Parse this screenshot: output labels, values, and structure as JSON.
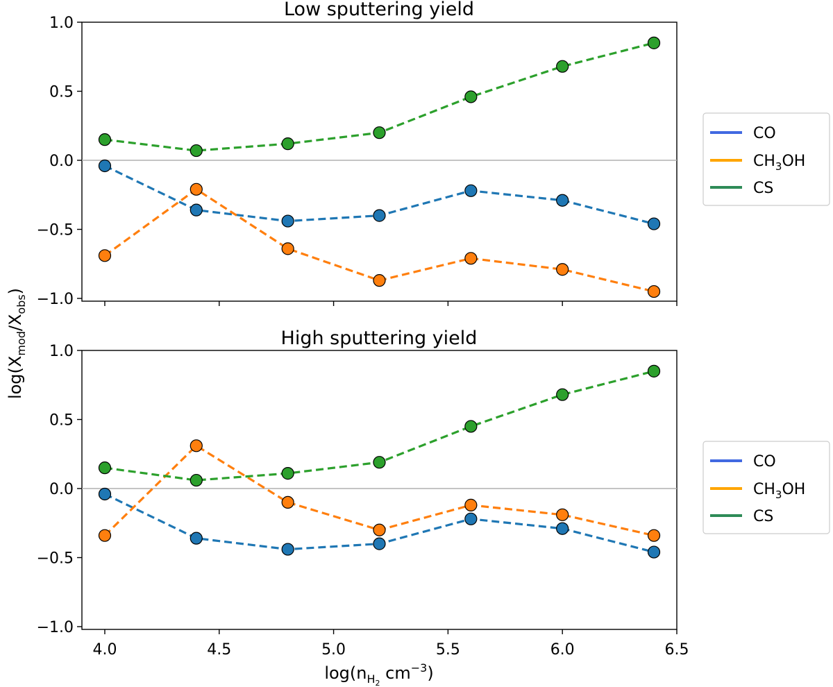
{
  "colors": {
    "CO": "#1f77b4",
    "CH3OH": "#ff7f0e",
    "CS": "#2ca02c",
    "legend_CO": "#4169e1",
    "legend_CH3OH": "#ffa500",
    "legend_CS": "#2e8b57",
    "zero_line": "#b0b0b0"
  },
  "axes": {
    "xlabel_main": "log(n",
    "xlabel_sub": "H",
    "xlabel_subsub": "2",
    "xlabel_unit": " cm",
    "xlabel_exp": "−3",
    "xlabel_close": ")",
    "ylabel_main": "log(X",
    "ylabel_sub1": "mod",
    "ylabel_mid": "/X",
    "ylabel_sub2": "obs",
    "ylabel_close": ")"
  },
  "legend": {
    "co_label": "CO",
    "ch3oh_pre": "CH",
    "ch3oh_sub": "3",
    "ch3oh_post": "OH",
    "cs_label": "CS"
  },
  "chart_data": [
    {
      "type": "line",
      "title": "Low sputtering yield",
      "x": [
        4.0,
        4.4,
        4.8,
        5.2,
        5.6,
        6.0,
        6.4
      ],
      "xlim": [
        3.9,
        6.5
      ],
      "ylim": [
        -1.02,
        1.0
      ],
      "xticks": [
        4.0,
        4.5,
        5.0,
        5.5,
        6.0,
        6.5
      ],
      "xtick_labels": [],
      "yticks": [
        1.0,
        0.5,
        0.0,
        -0.5,
        -1.0
      ],
      "ytick_labels": [
        "1.0",
        "0.5",
        "0.0",
        "−0.5",
        "−1.0"
      ],
      "series": [
        {
          "name": "CO",
          "values": [
            -0.04,
            -0.36,
            -0.44,
            -0.4,
            -0.22,
            -0.29,
            -0.46
          ]
        },
        {
          "name": "CH3OH",
          "values": [
            -0.69,
            -0.21,
            -0.64,
            -0.87,
            -0.71,
            -0.79,
            -0.95
          ]
        },
        {
          "name": "CS",
          "values": [
            0.15,
            0.07,
            0.12,
            0.2,
            0.46,
            0.68,
            0.85
          ]
        }
      ]
    },
    {
      "type": "line",
      "title": "High sputtering yield",
      "x": [
        4.0,
        4.4,
        4.8,
        5.2,
        5.6,
        6.0,
        6.4
      ],
      "xlim": [
        3.9,
        6.5
      ],
      "ylim": [
        -1.02,
        1.0
      ],
      "xticks": [
        4.0,
        4.5,
        5.0,
        5.5,
        6.0,
        6.5
      ],
      "xtick_labels": [
        "4.0",
        "4.5",
        "5.0",
        "5.5",
        "6.0",
        "6.5"
      ],
      "yticks": [
        1.0,
        0.5,
        0.0,
        -0.5,
        -1.0
      ],
      "ytick_labels": [
        "1.0",
        "0.5",
        "0.0",
        "−0.5",
        "−1.0"
      ],
      "series": [
        {
          "name": "CO",
          "values": [
            -0.04,
            -0.36,
            -0.44,
            -0.4,
            -0.22,
            -0.29,
            -0.46
          ]
        },
        {
          "name": "CH3OH",
          "values": [
            -0.34,
            0.31,
            -0.1,
            -0.3,
            -0.12,
            -0.19,
            -0.34
          ]
        },
        {
          "name": "CS",
          "values": [
            0.15,
            0.06,
            0.11,
            0.19,
            0.45,
            0.68,
            0.85
          ]
        }
      ]
    }
  ]
}
